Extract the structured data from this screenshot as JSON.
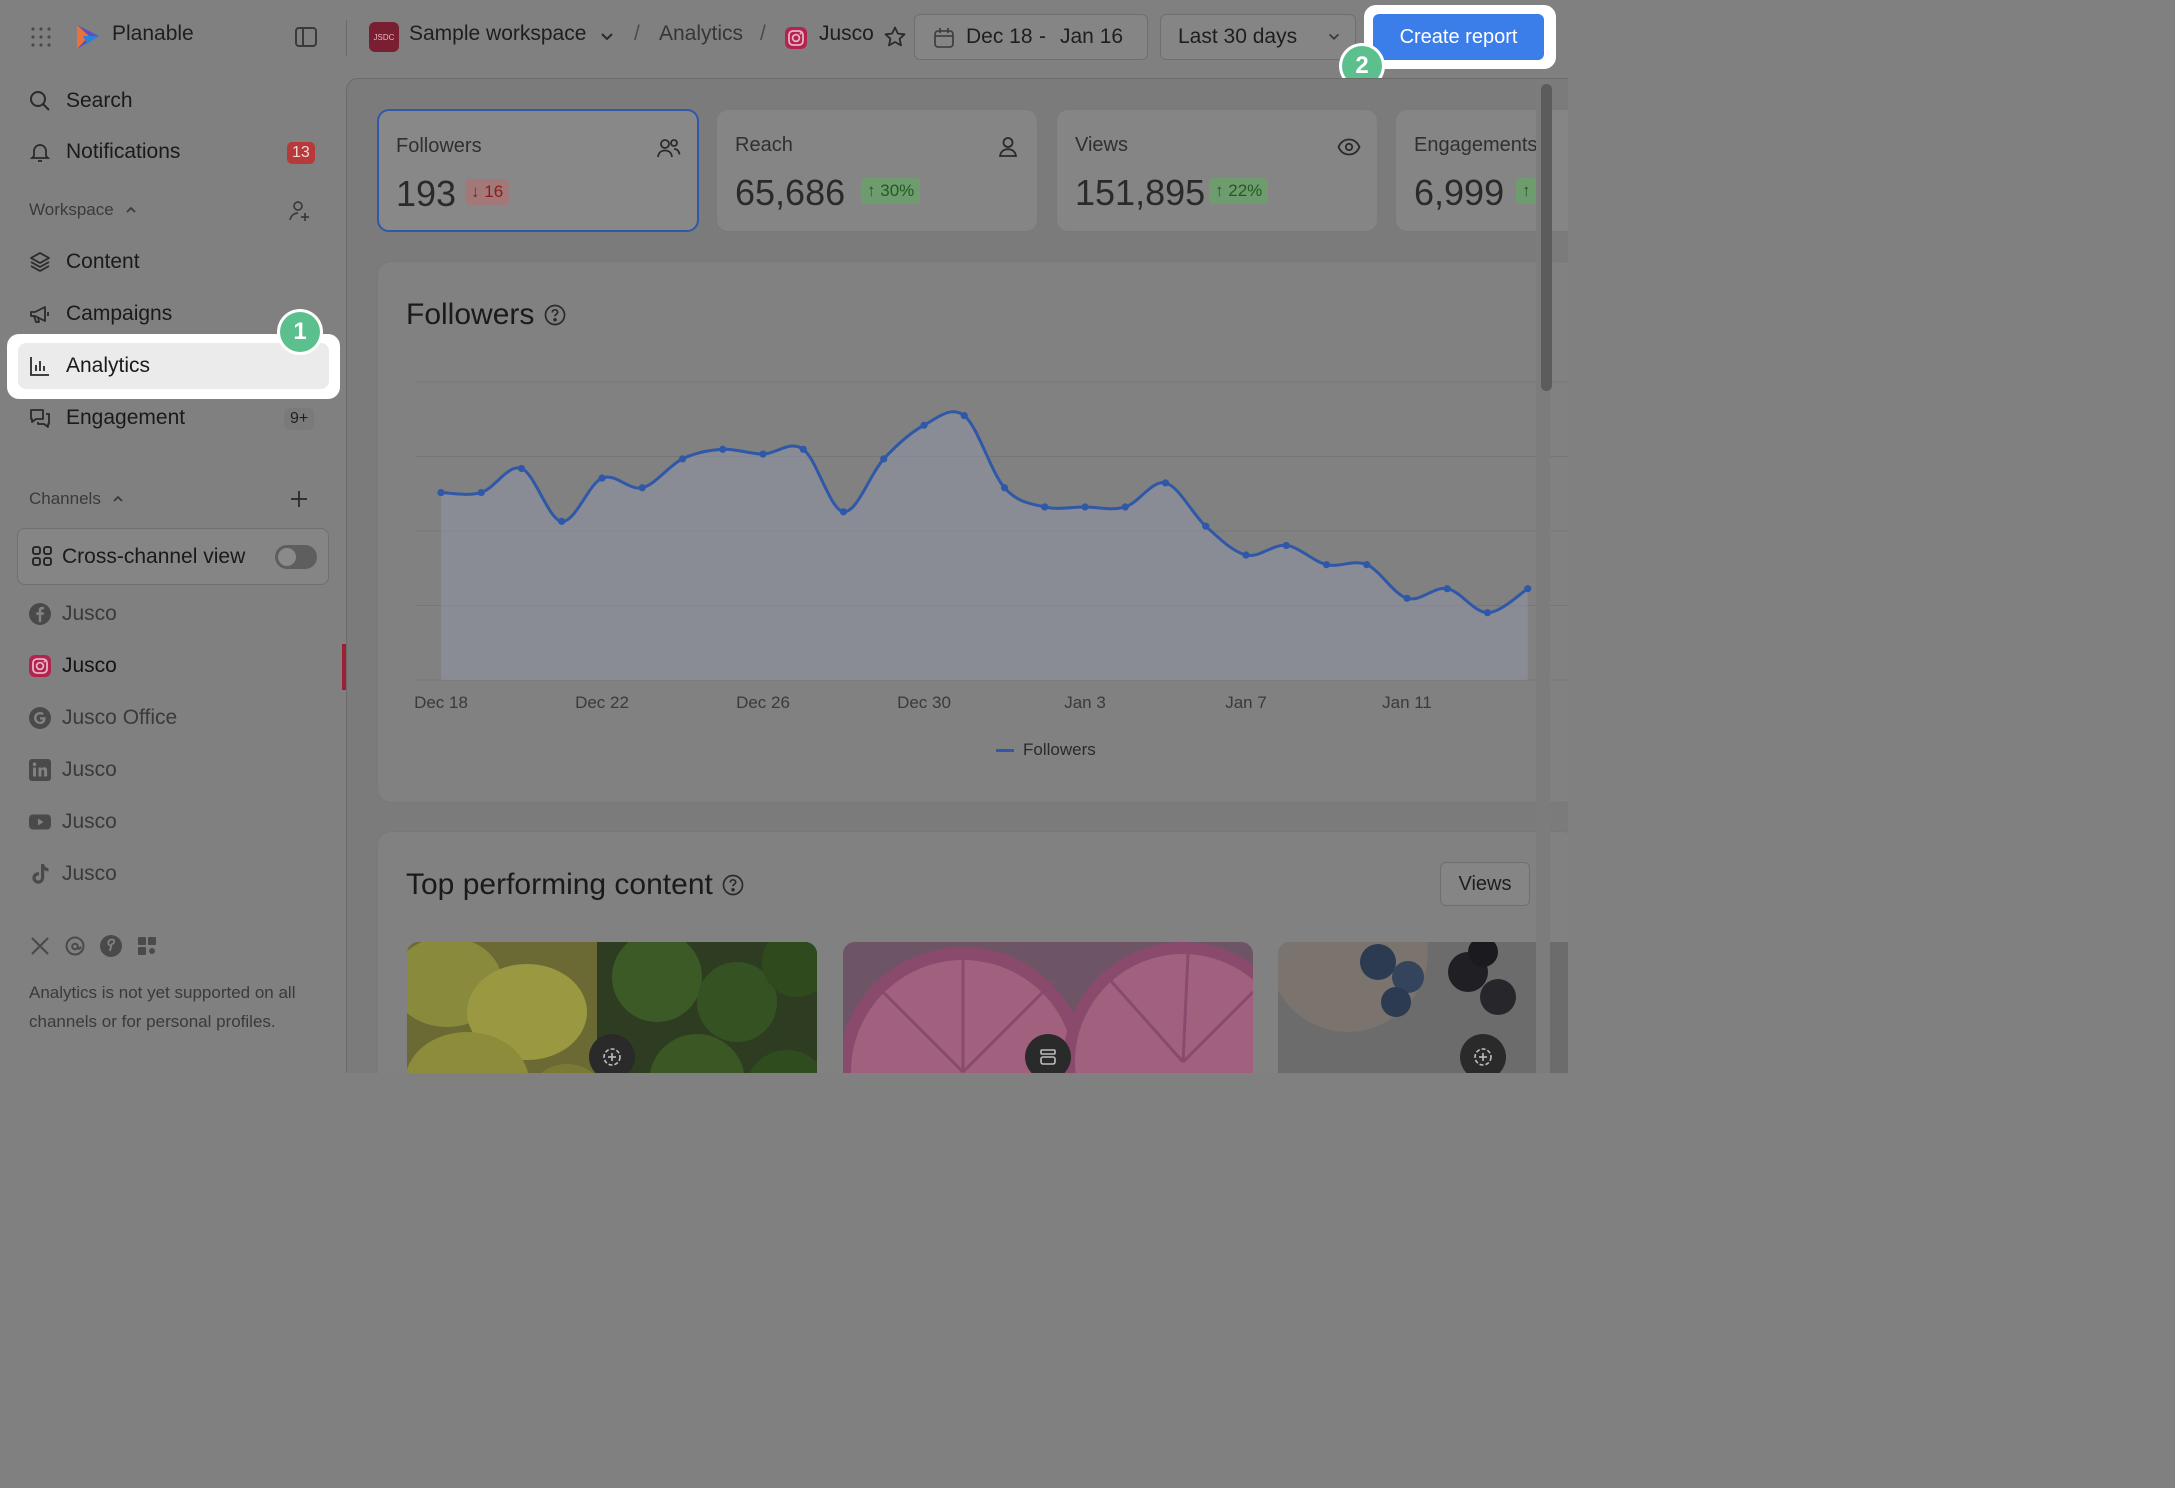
{
  "app": {
    "name": "Planable",
    "brand_color": "#3b7de9"
  },
  "header": {
    "workspace_avatar": "JSDC",
    "workspace": "Sample workspace",
    "breadcrumb_analytics": "Analytics",
    "channel": "Jusco",
    "date_start": "Dec 18",
    "date_dash": "-",
    "date_end": "Jan 16",
    "period": "Last 30 days",
    "create_report": "Create report"
  },
  "steps": {
    "one": "1",
    "two": "2"
  },
  "sidebar": {
    "search": "Search",
    "notifications": "Notifications",
    "notifications_count": "13",
    "workspace_label": "Workspace",
    "content": "Content",
    "campaigns": "Campaigns",
    "analytics": "Analytics",
    "engagement": "Engagement",
    "engagement_count": "9+",
    "channels_label": "Channels",
    "cross_channel": "Cross-channel view",
    "cross_channel_enabled": false,
    "channels": [
      {
        "network": "facebook-icon",
        "name": "Jusco"
      },
      {
        "network": "instagram-icon",
        "name": "Jusco",
        "active": true
      },
      {
        "network": "google-icon",
        "name": "Jusco Office"
      },
      {
        "network": "linkedin-icon",
        "name": "Jusco"
      },
      {
        "network": "youtube-icon",
        "name": "Jusco"
      },
      {
        "network": "tiktok-icon",
        "name": "Jusco"
      }
    ],
    "note": "Analytics is not yet supported on all channels or for personal profiles."
  },
  "metrics": [
    {
      "label": "Followers",
      "value": "193",
      "delta": "16",
      "direction": "down",
      "icon": "users-icon"
    },
    {
      "label": "Reach",
      "value": "65,686",
      "delta": "30%",
      "direction": "up",
      "icon": "user-icon"
    },
    {
      "label": "Views",
      "value": "151,895",
      "delta": "22%",
      "direction": "up",
      "icon": "eye-icon"
    },
    {
      "label": "Engagements",
      "value": "6,999",
      "delta": "",
      "direction": "up",
      "icon": ""
    }
  ],
  "followers_panel": {
    "title": "Followers",
    "legend": "Followers"
  },
  "chart_data": {
    "type": "area",
    "title": "Followers",
    "x_ticks": [
      "Dec 18",
      "Dec 22",
      "Dec 26",
      "Dec 30",
      "Jan 3",
      "Jan 7",
      "Jan 11"
    ],
    "x": [
      "Dec 18",
      "Dec 19",
      "Dec 20",
      "Dec 21",
      "Dec 22",
      "Dec 23",
      "Dec 24",
      "Dec 25",
      "Dec 26",
      "Dec 27",
      "Dec 28",
      "Dec 29",
      "Dec 30",
      "Dec 31",
      "Jan 1",
      "Jan 2",
      "Jan 3",
      "Jan 4",
      "Jan 5",
      "Jan 6",
      "Jan 7",
      "Jan 8",
      "Jan 9",
      "Jan 10",
      "Jan 11",
      "Jan 12",
      "Jan 13",
      "Jan 14"
    ],
    "series": [
      {
        "name": "Followers",
        "color": "#2f58a8",
        "values": [
          227,
          227,
          232,
          221,
          230,
          228,
          234,
          236,
          235,
          236,
          223,
          234,
          241,
          243,
          228,
          224,
          224,
          224,
          229,
          220,
          214,
          216,
          212,
          212,
          205,
          207,
          202,
          207
        ]
      }
    ],
    "ylim": [
      188,
      250
    ],
    "grid": true,
    "legend_position": "bottom-center"
  },
  "top_content": {
    "title": "Top performing content",
    "sort": "Views"
  }
}
